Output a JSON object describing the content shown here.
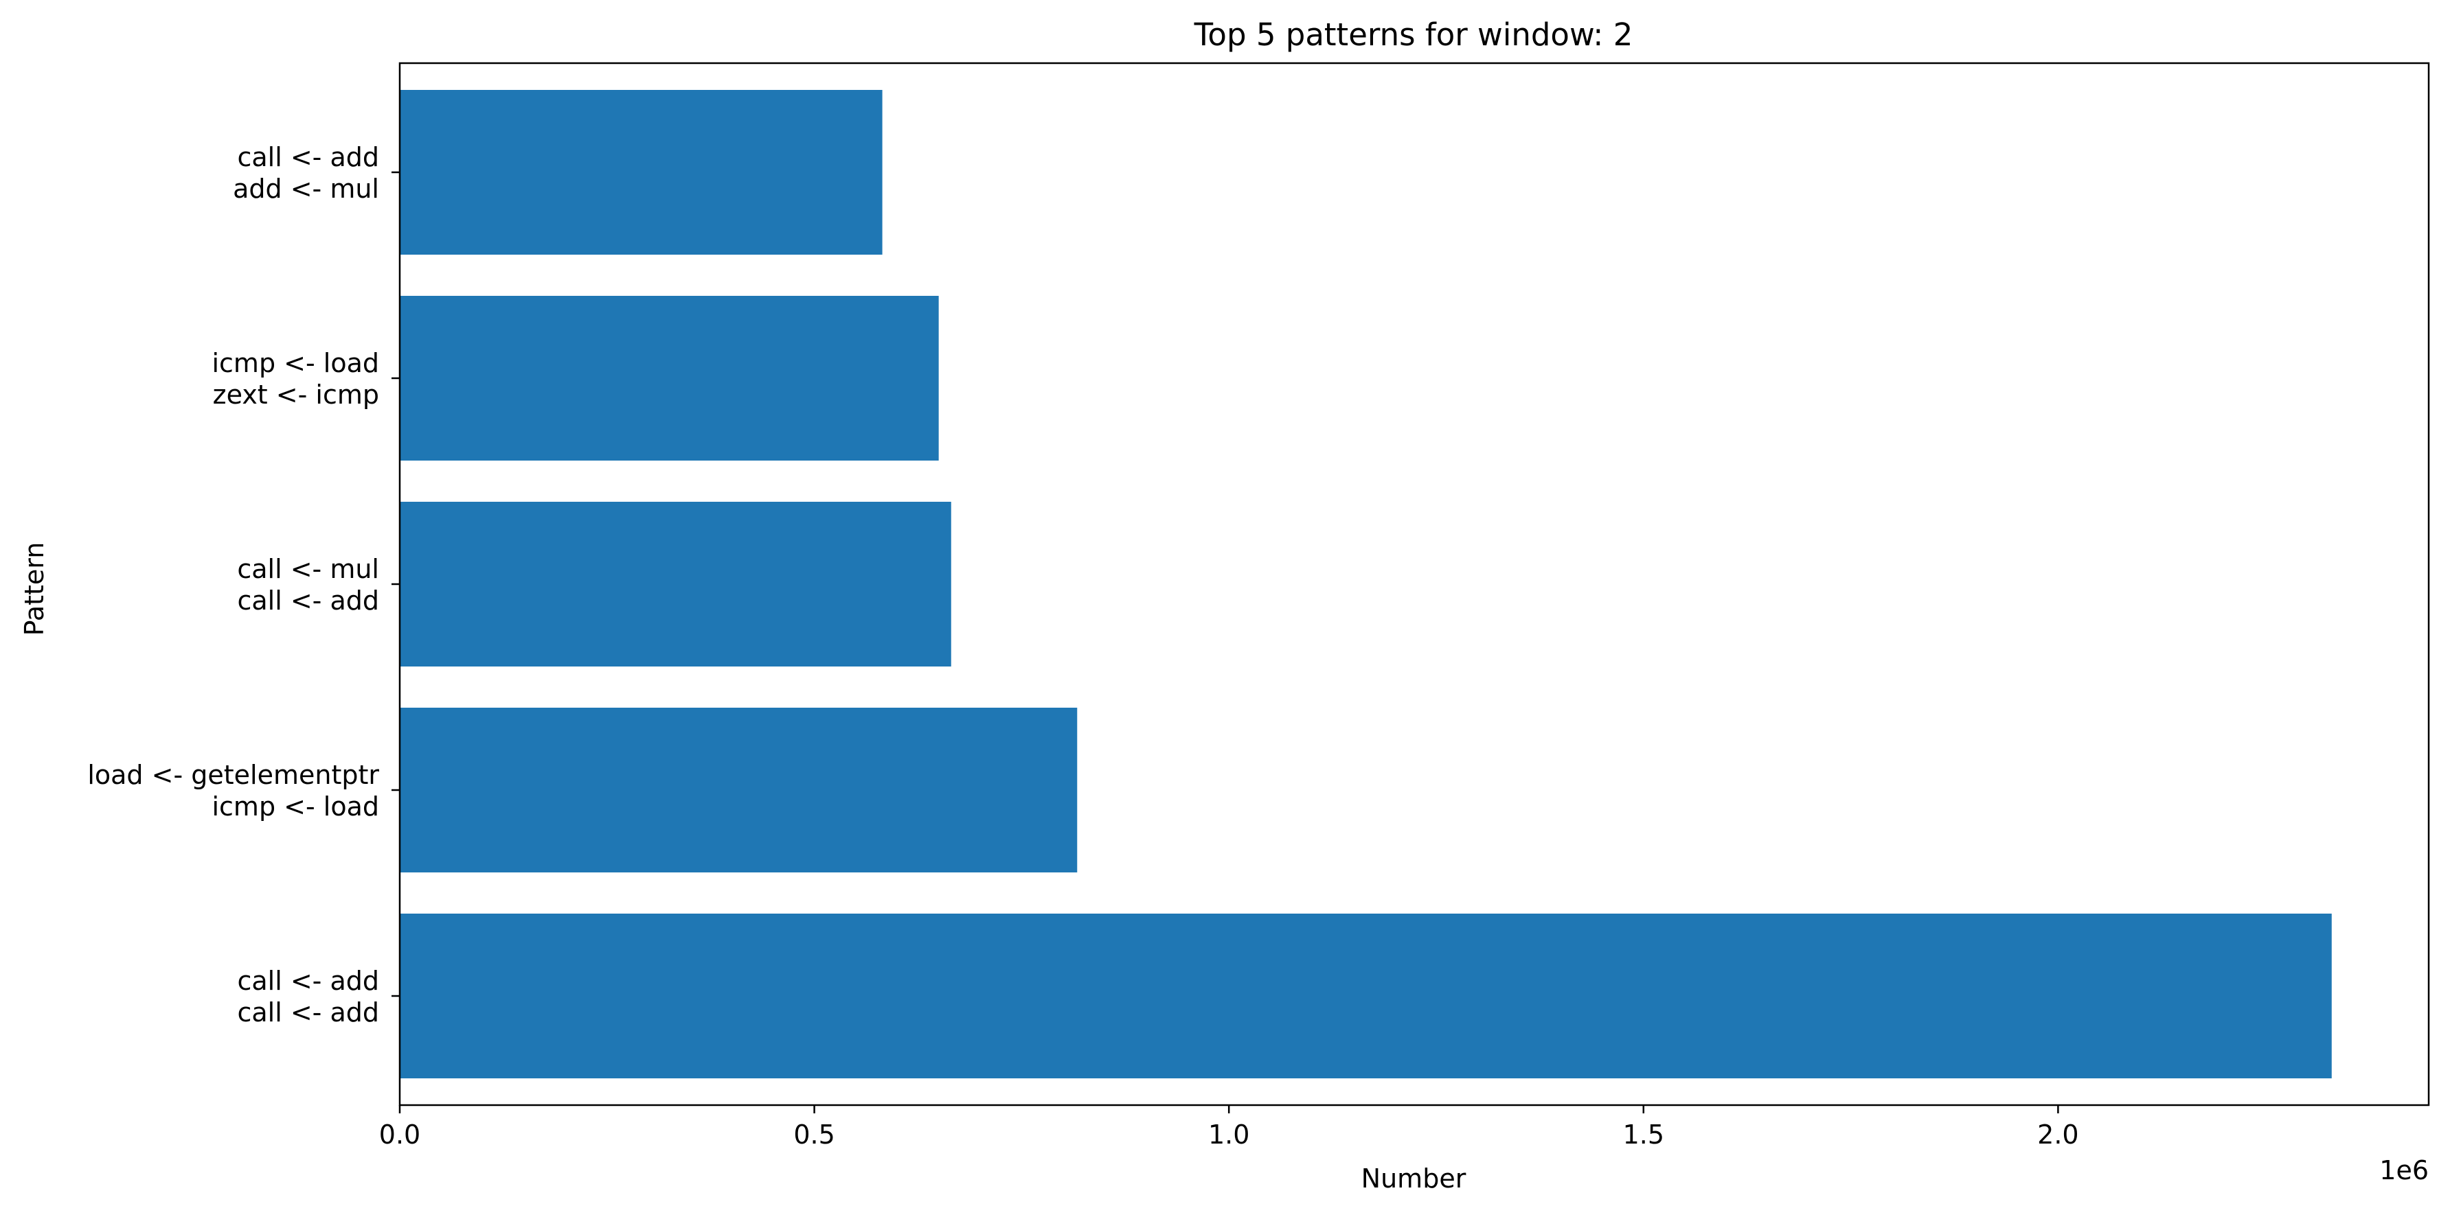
{
  "chart_data": {
    "type": "bar",
    "orientation": "horizontal",
    "title": "Top 5 patterns for window: 2",
    "xlabel": "Number",
    "ylabel": "Pattern",
    "x_offset_label": "1e6",
    "categories": [
      [
        "call <- add",
        "call <- add"
      ],
      [
        "load <- getelementptr",
        "icmp <- load"
      ],
      [
        "call <- mul",
        "call <- add"
      ],
      [
        "icmp <- load",
        "zext <- icmp"
      ],
      [
        "call <- add",
        "add <- mul"
      ]
    ],
    "values": [
      2330000,
      817000,
      665000,
      650000,
      582000
    ],
    "xlim": [
      0,
      2447000
    ],
    "xticks": [
      0,
      500000,
      1000000,
      1500000,
      2000000
    ],
    "xtick_labels": [
      "0.0",
      "0.5",
      "1.0",
      "1.5",
      "2.0"
    ],
    "bar_color": "#1f77b4",
    "grid": false
  }
}
